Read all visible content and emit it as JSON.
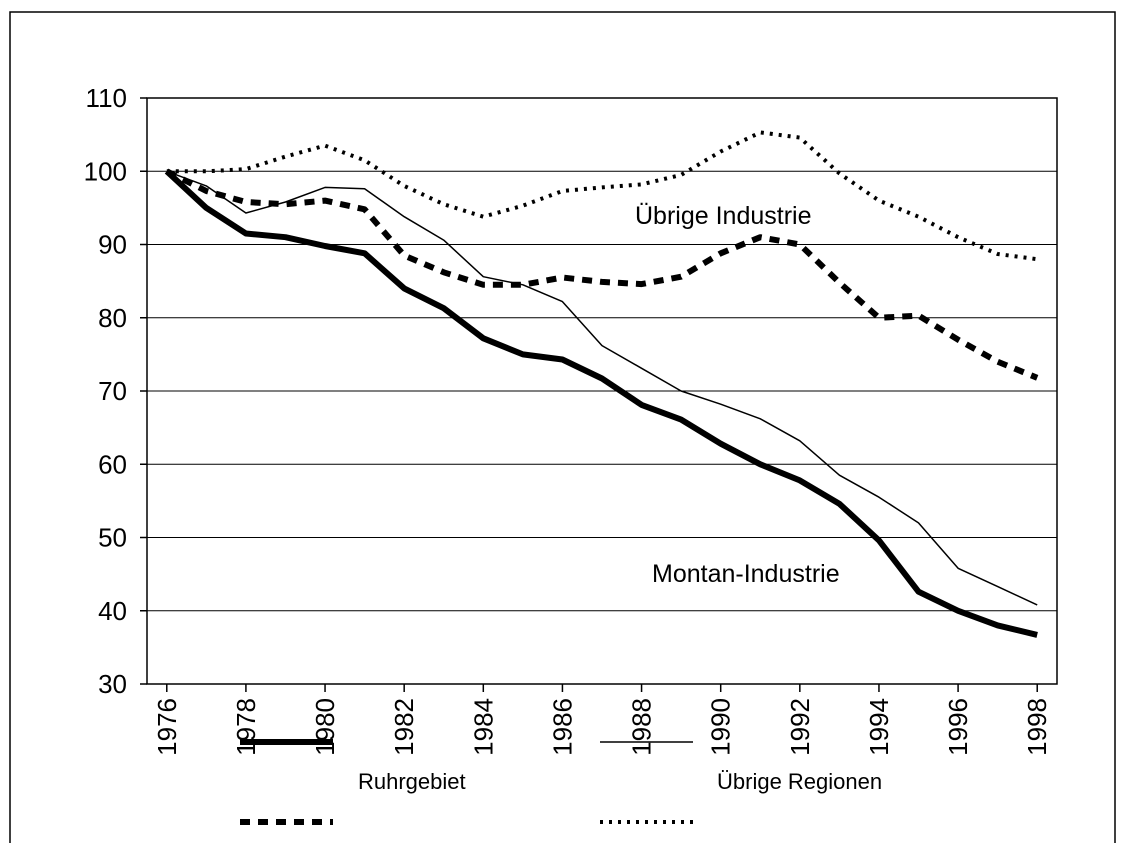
{
  "chart_data": {
    "type": "line",
    "x": [
      1976,
      1977,
      1978,
      1979,
      1980,
      1981,
      1982,
      1983,
      1984,
      1985,
      1986,
      1987,
      1988,
      1989,
      1990,
      1991,
      1992,
      1993,
      1994,
      1995,
      1996,
      1997,
      1998
    ],
    "series": [
      {
        "name": "Ruhrgebiet",
        "group": "Montan-Industrie",
        "color": "#000000",
        "width": 6,
        "dash": "none",
        "values": [
          100,
          95,
          91.5,
          91,
          89.8,
          88.8,
          84,
          81.3,
          77.2,
          75,
          74.3,
          71.7,
          68.1,
          66.1,
          62.8,
          60,
          57.8,
          54.6,
          49.6,
          42.6,
          40,
          38,
          36.7
        ]
      },
      {
        "name": "Übrige Regionen",
        "group": "Montan-Industrie",
        "color": "#000000",
        "width": 1.5,
        "dash": "none",
        "values": [
          100,
          98,
          94.3,
          95.8,
          97.8,
          97.6,
          93.8,
          90.6,
          85.6,
          84.5,
          82.2,
          76.2,
          73.1,
          70,
          68.2,
          66.2,
          63.2,
          58.5,
          55.5,
          52,
          45.8,
          43.3,
          40.8
        ]
      },
      {
        "name": "Ruhrgebiet",
        "group": "Übrige Industrie",
        "color": "#000000",
        "width": 6,
        "dash": "10 8",
        "values": [
          100,
          97.3,
          95.8,
          95.5,
          96,
          94.8,
          88.5,
          86.2,
          84.5,
          84.5,
          85.5,
          84.9,
          84.6,
          85.6,
          88.8,
          91,
          90,
          84.8,
          80,
          80.3,
          77,
          74,
          71.8
        ]
      },
      {
        "name": "Übrige Regionen",
        "group": "Übrige Industrie",
        "color": "#000000",
        "width": 4,
        "dash": "3 6",
        "values": [
          100,
          100,
          100.3,
          102,
          103.5,
          101.5,
          98,
          95.5,
          93.8,
          95.3,
          97.3,
          97.8,
          98.2,
          99.5,
          102.7,
          105.3,
          104.6,
          99.7,
          96,
          93.8,
          91,
          88.7,
          88
        ]
      }
    ],
    "xlim": [
      1975.5,
      1998.5
    ],
    "xticks": [
      1976,
      1978,
      1980,
      1982,
      1984,
      1986,
      1988,
      1990,
      1992,
      1994,
      1996,
      1998
    ],
    "ylim": [
      30,
      110
    ],
    "yticks": [
      30,
      40,
      50,
      60,
      70,
      80,
      90,
      100,
      110
    ],
    "grid": true
  }
}
